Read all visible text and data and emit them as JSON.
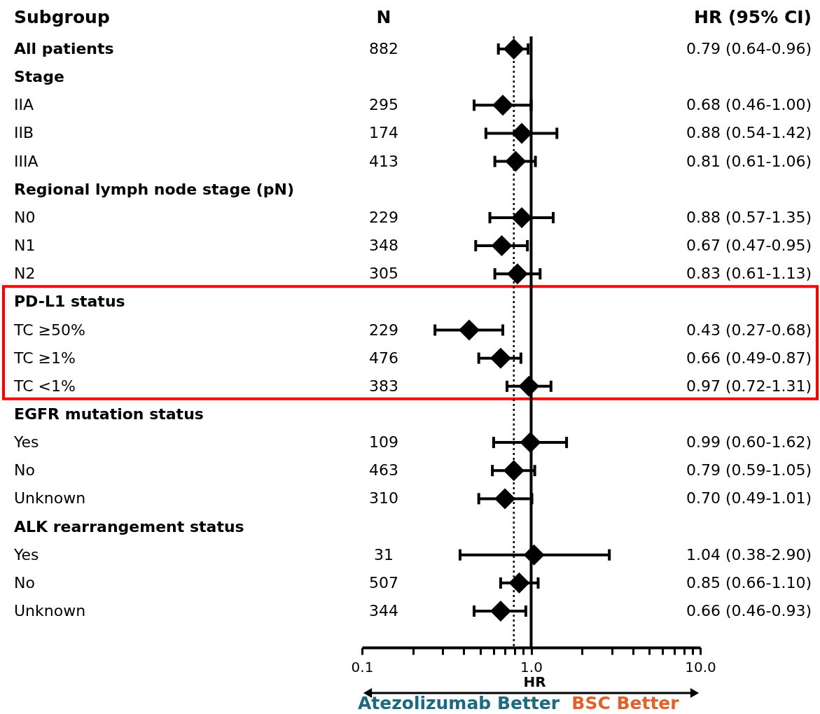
{
  "chart_data": {
    "type": "scatter",
    "orientation": "horizontal",
    "marker": "diamond",
    "xlabel": "HR",
    "log": "x",
    "color": "#000000",
    "categories": [
      "All patients",
      "Stage",
      "IIA",
      "IIB",
      "IIIA",
      "Regional lymph node stage (pN)",
      "N0",
      "N1",
      "N2",
      "PD-L1 status",
      "TC ≥50%",
      "TC ≥1%",
      "TC <1%",
      "EGFR mutation status",
      "Yes",
      "No",
      "Unknown",
      "ALK rearrangement status",
      "Yes",
      "No",
      "Unknown"
    ],
    "values": [
      0.79,
      null,
      0.68,
      0.88,
      0.81,
      null,
      0.88,
      0.67,
      0.83,
      null,
      0.43,
      0.66,
      0.97,
      null,
      0.99,
      0.79,
      0.7,
      null,
      1.04,
      0.85,
      0.66
    ],
    "errors": [
      [
        0.64,
        0.96
      ],
      null,
      [
        0.46,
        1.0
      ],
      [
        0.54,
        1.42
      ],
      [
        0.61,
        1.06
      ],
      null,
      [
        0.57,
        1.35
      ],
      [
        0.47,
        0.95
      ],
      [
        0.61,
        1.13
      ],
      null,
      [
        0.27,
        0.68
      ],
      [
        0.49,
        0.87
      ],
      [
        0.72,
        1.31
      ],
      null,
      [
        0.6,
        1.62
      ],
      [
        0.59,
        1.05
      ],
      [
        0.49,
        1.01
      ],
      null,
      [
        0.38,
        2.9
      ],
      [
        0.66,
        1.1
      ],
      [
        0.46,
        0.93
      ]
    ],
    "value_labels": [
      "0.79 (0.64-0.96)",
      null,
      "0.68 (0.46-1.00)",
      "0.88 (0.54-1.42)",
      "0.81 (0.61-1.06)",
      null,
      "0.88 (0.57-1.35)",
      "0.67 (0.47-0.95)",
      "0.83 (0.61-1.13)",
      null,
      "0.43 (0.27-0.68)",
      "0.66 (0.49-0.87)",
      "0.97 (0.72-1.31)",
      null,
      "0.99 (0.60-1.62)",
      "0.79 (0.59-1.05)",
      "0.70 (0.49-1.01)",
      null,
      "1.04 (0.38-2.90)",
      "0.85 (0.66-1.10)",
      "0.66 (0.46-0.93)"
    ],
    "xlim": [
      0.1,
      10
    ],
    "xticks": [
      {
        "value": 0.1,
        "label": "0.1"
      },
      {
        "value": 0.2,
        "label": null
      },
      {
        "value": 0.3,
        "label": null
      },
      {
        "value": 0.4,
        "label": null
      },
      {
        "value": 0.5,
        "label": null
      },
      {
        "value": 0.6,
        "label": null
      },
      {
        "value": 0.7,
        "label": null
      },
      {
        "value": 0.8,
        "label": null
      },
      {
        "value": 0.9,
        "label": null
      },
      {
        "value": 1,
        "label": "1.0"
      },
      {
        "value": 2,
        "label": null
      },
      {
        "value": 3,
        "label": null
      },
      {
        "value": 4,
        "label": null
      },
      {
        "value": 5,
        "label": null
      },
      {
        "value": 6,
        "label": null
      },
      {
        "value": 7,
        "label": null
      },
      {
        "value": 8,
        "label": null
      },
      {
        "value": 9,
        "label": null
      },
      {
        "value": 10,
        "label": "10.0"
      }
    ],
    "ref_lines": [
      {
        "axis": "x",
        "value": 1,
        "line_style": "solid"
      },
      {
        "axis": "x",
        "value": 0.79,
        "line_style": "dotted"
      }
    ],
    "annotations": [
      "Subgroup",
      "N",
      "HR (95% CI)",
      "Atezolizumab Better",
      "BSC Better",
      "882",
      "295",
      "174",
      "413",
      "229",
      "348",
      "305",
      "229",
      "476",
      "383",
      "109",
      "463",
      "310",
      "31",
      "507",
      "344"
    ]
  }
}
